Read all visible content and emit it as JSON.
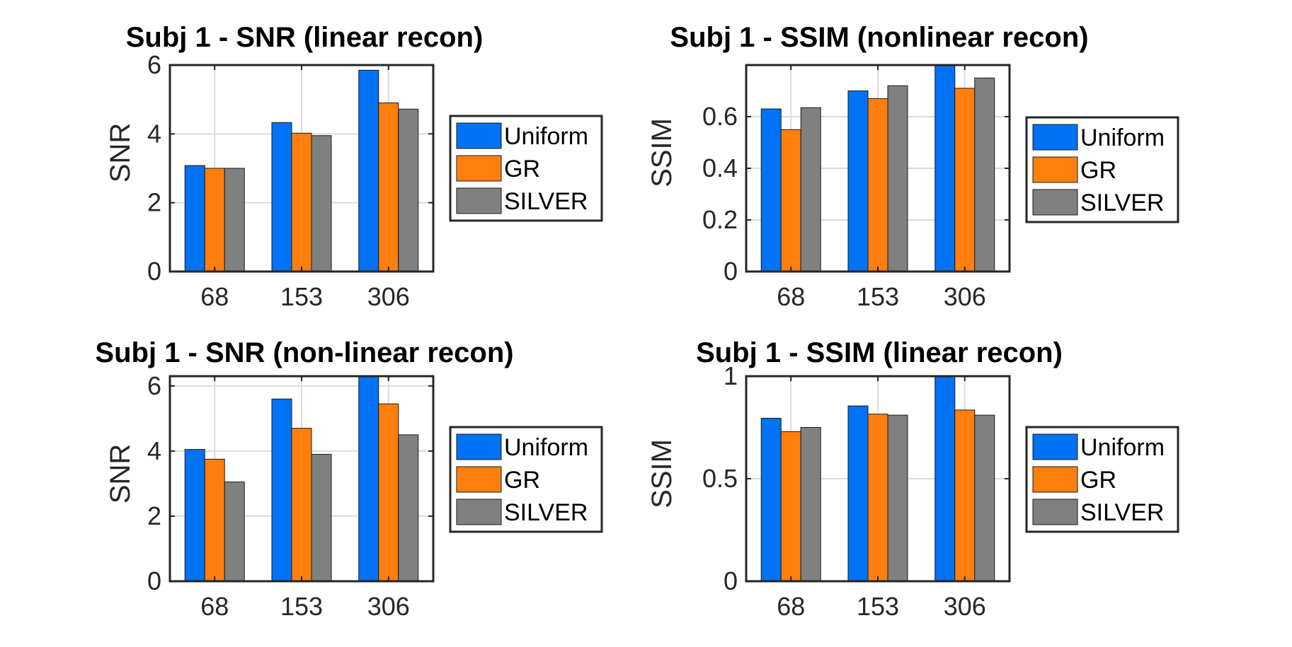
{
  "colors": {
    "Uniform": "#0072f5",
    "GR": "#ff7f0e",
    "SILVER": "#808080"
  },
  "chart_data": [
    {
      "type": "bar",
      "title": "Subj 1 - SNR (linear recon)",
      "xlabel": "",
      "ylabel": "SNR",
      "categories": [
        "68",
        "153",
        "306"
      ],
      "ylim": [
        0,
        6
      ],
      "yticks": [
        0,
        2,
        4,
        6
      ],
      "ytick_labels": [
        "0",
        "2",
        "4",
        "6"
      ],
      "grid": true,
      "legend": "right",
      "series": [
        {
          "name": "Uniform",
          "values": [
            3.08,
            4.33,
            5.85
          ]
        },
        {
          "name": "GR",
          "values": [
            3.0,
            4.02,
            4.9
          ]
        },
        {
          "name": "SILVER",
          "values": [
            3.0,
            3.95,
            4.72
          ]
        }
      ]
    },
    {
      "type": "bar",
      "title": "Subj 1 - SSIM (nonlinear recon)",
      "xlabel": "",
      "ylabel": "SSIM",
      "categories": [
        "68",
        "153",
        "306"
      ],
      "ylim": [
        0,
        0.8
      ],
      "yticks": [
        0,
        0.2,
        0.4,
        0.6
      ],
      "ytick_labels": [
        "0",
        "0.2",
        "0.4",
        "0.6"
      ],
      "grid": true,
      "legend": "right",
      "series": [
        {
          "name": "Uniform",
          "values": [
            0.63,
            0.7,
            0.8
          ]
        },
        {
          "name": "GR",
          "values": [
            0.55,
            0.67,
            0.71
          ]
        },
        {
          "name": "SILVER",
          "values": [
            0.635,
            0.72,
            0.75
          ]
        }
      ]
    },
    {
      "type": "bar",
      "title": "Subj 1 - SNR (non-linear recon)",
      "xlabel": "",
      "ylabel": "SNR",
      "categories": [
        "68",
        "153",
        "306"
      ],
      "ylim": [
        0,
        6.3
      ],
      "yticks": [
        0,
        2,
        4,
        6
      ],
      "ytick_labels": [
        "0",
        "2",
        "4",
        "6"
      ],
      "grid": true,
      "legend": "right",
      "series": [
        {
          "name": "Uniform",
          "values": [
            4.05,
            5.6,
            6.3
          ]
        },
        {
          "name": "GR",
          "values": [
            3.75,
            4.7,
            5.45
          ]
        },
        {
          "name": "SILVER",
          "values": [
            3.05,
            3.9,
            4.5
          ]
        }
      ]
    },
    {
      "type": "bar",
      "title": "Subj 1 - SSIM (linear recon)",
      "xlabel": "",
      "ylabel": "SSIM",
      "categories": [
        "68",
        "153",
        "306"
      ],
      "ylim": [
        0,
        1
      ],
      "yticks": [
        0,
        0.5,
        1
      ],
      "ytick_labels": [
        "0",
        "0.5",
        "1"
      ],
      "grid": true,
      "legend": "right",
      "series": [
        {
          "name": "Uniform",
          "values": [
            0.795,
            0.855,
            1.0
          ]
        },
        {
          "name": "GR",
          "values": [
            0.73,
            0.815,
            0.835
          ]
        },
        {
          "name": "SILVER",
          "values": [
            0.75,
            0.81,
            0.81
          ]
        }
      ]
    }
  ]
}
